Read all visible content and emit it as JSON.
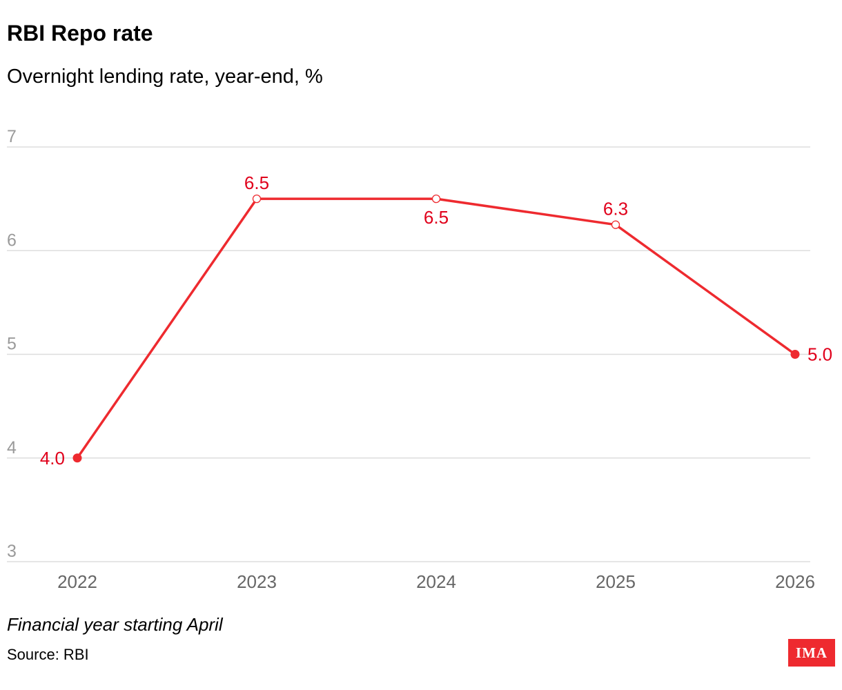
{
  "chart_data": {
    "type": "line",
    "title": "RBI Repo rate",
    "subtitle": "Overnight lending rate, year-end, %",
    "xlabel": "",
    "ylabel": "",
    "categories": [
      "2022",
      "2023",
      "2024",
      "2025",
      "2026"
    ],
    "series": [
      {
        "values": [
          4.0,
          6.5,
          6.5,
          6.25,
          5.0
        ]
      }
    ],
    "data_labels": [
      "4.0",
      "6.5",
      "6.5",
      "6.3",
      "5.0"
    ],
    "y_ticks": [
      "3",
      "4",
      "5",
      "6",
      "7"
    ],
    "ylim": [
      3,
      7
    ],
    "grid": true,
    "legend": "none",
    "colors": {
      "line": "#ee2a2f",
      "label": "#e0001b",
      "grid": "#dddddd",
      "tick": "#9a9a9a",
      "xtick": "#666666"
    }
  },
  "footer": {
    "note": "Financial year starting April",
    "source": "Source: RBI",
    "logo_text": "IMA"
  }
}
